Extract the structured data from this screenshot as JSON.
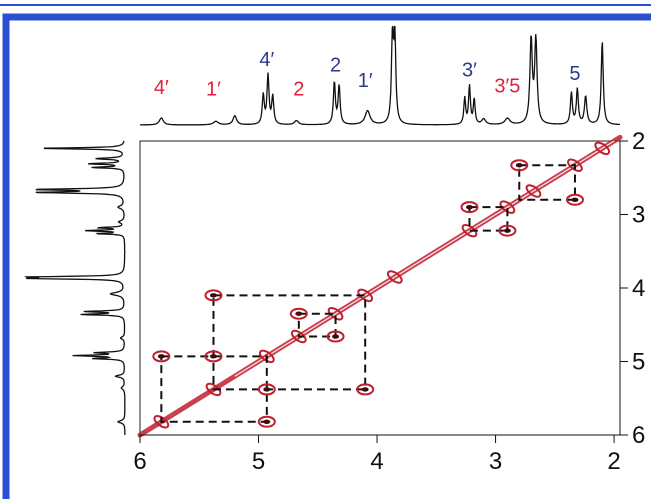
{
  "chart_data": {
    "type": "2d-nmr-cosy",
    "title": "",
    "xlabel": "",
    "ylabel": "",
    "xlim": [
      6.0,
      1.95
    ],
    "ylim": [
      2.0,
      6.0
    ],
    "x_ticks": [
      {
        "value": 6,
        "label": "6"
      },
      {
        "value": 5,
        "label": "5"
      },
      {
        "value": 4,
        "label": "4"
      },
      {
        "value": 3,
        "label": "3"
      },
      {
        "value": 2,
        "label": "2"
      }
    ],
    "y_ticks": [
      {
        "value": 2,
        "label": "2"
      },
      {
        "value": 3,
        "label": "3"
      },
      {
        "value": 4,
        "label": "4"
      },
      {
        "value": 5,
        "label": "5"
      },
      {
        "value": 6,
        "label": "6"
      }
    ],
    "peak_labels": [
      {
        "text": "4′",
        "ppm": 5.82,
        "color": "#e0203a",
        "height": 0.3
      },
      {
        "text": "1′",
        "ppm": 5.38,
        "color": "#e0203a",
        "height": 0.28
      },
      {
        "text": "2",
        "ppm": 4.66,
        "color": "#e0203a",
        "height": 0.28
      },
      {
        "text": "4′",
        "ppm": 4.93,
        "color": "#2b3a8c",
        "height": 0.7
      },
      {
        "text": "2",
        "ppm": 4.35,
        "color": "#2b3a8c",
        "height": 0.62
      },
      {
        "text": "1′",
        "ppm": 4.1,
        "color": "#2b3a8c",
        "height": 0.4
      },
      {
        "text": "3′",
        "ppm": 3.22,
        "color": "#2b3a8c",
        "height": 0.55
      },
      {
        "text": "3′5",
        "ppm": 2.9,
        "color": "#e0203a",
        "height": 0.32
      },
      {
        "text": "5",
        "ppm": 2.33,
        "color": "#2b3a8c",
        "height": 0.5
      }
    ],
    "spectrum_peaks": [
      {
        "ppm": 5.82,
        "height": 0.1,
        "width": 0.02
      },
      {
        "ppm": 5.36,
        "height": 0.05,
        "width": 0.025
      },
      {
        "ppm": 5.2,
        "height": 0.13,
        "width": 0.018
      },
      {
        "ppm": 4.96,
        "height": 0.42,
        "width": 0.01
      },
      {
        "ppm": 4.92,
        "height": 0.7,
        "width": 0.01
      },
      {
        "ppm": 4.88,
        "height": 0.4,
        "width": 0.01
      },
      {
        "ppm": 4.68,
        "height": 0.06,
        "width": 0.02
      },
      {
        "ppm": 4.36,
        "height": 0.6,
        "width": 0.01
      },
      {
        "ppm": 4.32,
        "height": 0.55,
        "width": 0.01
      },
      {
        "ppm": 4.08,
        "height": 0.2,
        "width": 0.025
      },
      {
        "ppm": 3.87,
        "height": 1.2,
        "width": 0.01
      },
      {
        "ppm": 3.85,
        "height": 1.2,
        "width": 0.01
      },
      {
        "ppm": 3.26,
        "height": 0.38,
        "width": 0.009
      },
      {
        "ppm": 3.22,
        "height": 0.55,
        "width": 0.009
      },
      {
        "ppm": 3.18,
        "height": 0.36,
        "width": 0.009
      },
      {
        "ppm": 3.1,
        "height": 0.08,
        "width": 0.02
      },
      {
        "ppm": 2.9,
        "height": 0.09,
        "width": 0.025
      },
      {
        "ppm": 2.7,
        "height": 1.2,
        "width": 0.012
      },
      {
        "ppm": 2.66,
        "height": 1.2,
        "width": 0.012
      },
      {
        "ppm": 2.36,
        "height": 0.45,
        "width": 0.01
      },
      {
        "ppm": 2.31,
        "height": 0.5,
        "width": 0.01
      },
      {
        "ppm": 2.24,
        "height": 0.4,
        "width": 0.012
      },
      {
        "ppm": 2.1,
        "height": 1.2,
        "width": 0.01
      }
    ],
    "cross_peaks": [
      {
        "x": 5.82,
        "y": 4.93
      },
      {
        "x": 4.93,
        "y": 5.82
      },
      {
        "x": 5.38,
        "y": 4.1
      },
      {
        "x": 4.1,
        "y": 5.38
      },
      {
        "x": 5.38,
        "y": 4.93
      },
      {
        "x": 4.93,
        "y": 5.38
      },
      {
        "x": 4.66,
        "y": 4.35
      },
      {
        "x": 4.35,
        "y": 4.66
      },
      {
        "x": 3.22,
        "y": 2.9
      },
      {
        "x": 2.9,
        "y": 3.22
      },
      {
        "x": 2.8,
        "y": 2.33
      },
      {
        "x": 2.33,
        "y": 2.8
      }
    ],
    "dashed_boxes": [
      {
        "x1": 5.82,
        "x2": 4.93,
        "y1": 4.93,
        "y2": 5.82
      },
      {
        "x1": 5.38,
        "x2": 4.1,
        "y1": 4.1,
        "y2": 5.38
      },
      {
        "x1": 4.66,
        "x2": 4.35,
        "y1": 4.35,
        "y2": 4.66
      },
      {
        "x1": 3.22,
        "x2": 2.9,
        "y1": 2.9,
        "y2": 3.22
      },
      {
        "x1": 2.8,
        "x2": 2.33,
        "y1": 2.33,
        "y2": 2.8
      }
    ],
    "grid": false,
    "legend": "none",
    "colors": {
      "contour": "#c0202e",
      "label_red": "#e0203a",
      "label_blue": "#2b3a8c",
      "border": "#2a4fd0",
      "spectrum": "#111111"
    }
  }
}
